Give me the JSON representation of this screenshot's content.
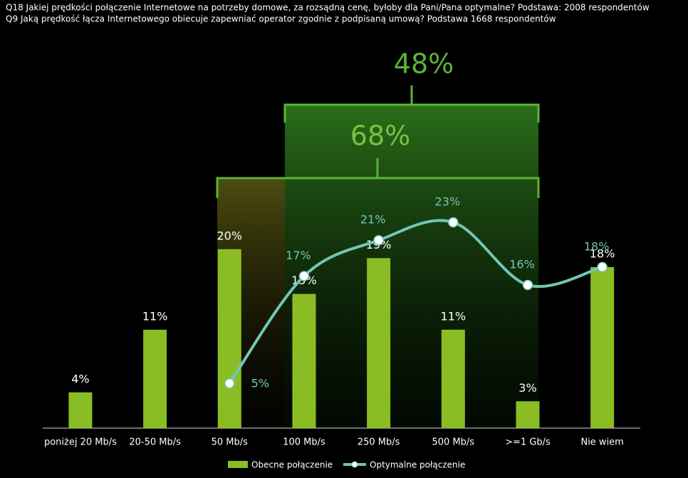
{
  "chart_data": {
    "type": "bar",
    "title": "Q18 Jakiej prędkości połączenie Internetowe na potrzeby domowe, za rozsądną cenę, byłoby dla Pani/Pana optymalne? Podstawa: 2008 respondentów",
    "subtitle": "Q9 Jaką prędkość łącza Internetowego obiecuje zapewniać operator zgodnie z podpisaną umową? Podstawa 1668 respondentów",
    "categories": [
      "poniżej 20 Mb/s",
      "20-50 Mb/s",
      "50 Mb/s",
      "100 Mb/s",
      "250 Mb/s",
      "500 Mb/s",
      ">=1 Gb/s",
      "Nie wiem"
    ],
    "series": [
      {
        "name": "Obecne połączenie",
        "color": "#8abd24",
        "type": "bar",
        "values": [
          4,
          11,
          20,
          15,
          19,
          11,
          3,
          18
        ],
        "value_labels": [
          "4%",
          "11%",
          "20%",
          "15%",
          "19%",
          "11%",
          "3%",
          "18%"
        ]
      },
      {
        "name": "Optymalne połączenie",
        "color": "#72c6b6",
        "type": "line",
        "values": [
          null,
          null,
          5,
          17,
          21,
          23,
          16,
          18
        ],
        "value_labels": [
          null,
          null,
          "5%",
          "17%",
          "21%",
          "23%",
          "16%",
          "18%"
        ]
      }
    ],
    "annotations": [
      "48%",
      "68%"
    ],
    "ylim": [
      0,
      25
    ],
    "legend": "bottom"
  }
}
